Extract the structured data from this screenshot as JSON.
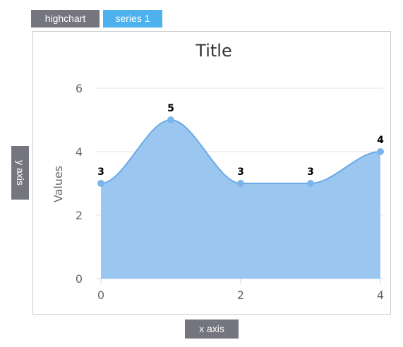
{
  "tabs": {
    "highchart": "highchart",
    "series": "series 1"
  },
  "axis_buttons": {
    "y": "y axis",
    "x": "x axis"
  },
  "colors": {
    "area": "#9bc6f0",
    "line": "#6aaae6",
    "point": "#7cb5ec",
    "button": "#75757f",
    "accent": "#4db1ee"
  },
  "chart_data": {
    "type": "area",
    "title": "Title",
    "ylabel": "Values",
    "xlabel": "",
    "x": [
      0,
      1,
      2,
      3,
      4
    ],
    "series": [
      {
        "values": [
          3,
          5,
          3,
          3,
          4
        ]
      }
    ],
    "xticks": [
      0,
      2,
      4
    ],
    "yticks": [
      0,
      2,
      4,
      6
    ],
    "xlim": [
      0,
      4
    ],
    "ylim": [
      0,
      6
    ],
    "data_labels": true,
    "grid": true,
    "smooth": true
  }
}
